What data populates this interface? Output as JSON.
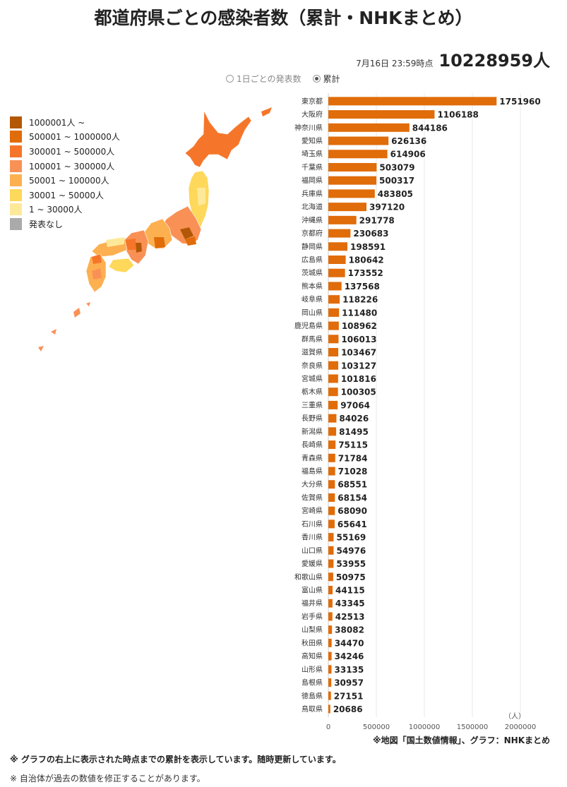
{
  "title": "都道府県ごとの感染者数（累計・NHKまとめ）",
  "asof": {
    "stamp": "7月16日 23:59時点",
    "total": "10228959人"
  },
  "toggle": {
    "daily": "1日ごとの発表数",
    "cumulative": "累計",
    "selected": "cumulative"
  },
  "legend": [
    {
      "label": "1000001人 ~",
      "color": "#b35806"
    },
    {
      "label": "500001 ~ 1000000人",
      "color": "#e06c0a"
    },
    {
      "label": "300001 ~ 500000人",
      "color": "#f5762a"
    },
    {
      "label": "100001 ~ 300000人",
      "color": "#f99156"
    },
    {
      "label": "50001 ~ 100000人",
      "color": "#fcb050"
    },
    {
      "label": "30001 ~ 50000人",
      "color": "#fed85a"
    },
    {
      "label": "1 ~ 30000人",
      "color": "#fee99a"
    },
    {
      "label": "発表なし",
      "color": "#aaaaaa"
    }
  ],
  "chart_data": {
    "type": "bar",
    "orientation": "horizontal",
    "categories": [
      "東京都",
      "大阪府",
      "神奈川県",
      "愛知県",
      "埼玉県",
      "千葉県",
      "福岡県",
      "兵庫県",
      "北海道",
      "沖縄県",
      "京都府",
      "静岡県",
      "広島県",
      "茨城県",
      "熊本県",
      "岐阜県",
      "岡山県",
      "鹿児島県",
      "群馬県",
      "滋賀県",
      "奈良県",
      "宮城県",
      "栃木県",
      "三重県",
      "長野県",
      "新潟県",
      "長崎県",
      "青森県",
      "福島県",
      "大分県",
      "佐賀県",
      "宮崎県",
      "石川県",
      "香川県",
      "山口県",
      "愛媛県",
      "和歌山県",
      "富山県",
      "福井県",
      "岩手県",
      "山梨県",
      "秋田県",
      "高知県",
      "山形県",
      "島根県",
      "徳島県",
      "鳥取県"
    ],
    "values": [
      1751960,
      1106188,
      844186,
      626136,
      614906,
      503079,
      500317,
      483805,
      397120,
      291778,
      230683,
      198591,
      180642,
      173552,
      137568,
      118226,
      111480,
      108962,
      106013,
      103467,
      103127,
      101816,
      100305,
      97064,
      84026,
      81495,
      75115,
      71784,
      71028,
      68551,
      68154,
      68090,
      65641,
      55169,
      54976,
      53955,
      50975,
      44115,
      43345,
      42513,
      38082,
      34470,
      34246,
      33135,
      30957,
      27151,
      20686
    ],
    "value_labels": [
      "1751960",
      "1106188",
      "844186",
      "626136",
      "614906",
      "503079",
      "500317",
      "483805",
      "397120",
      "291778",
      "230683",
      "198591",
      "180642",
      "173552",
      "137568",
      "118226",
      "111480",
      "108962",
      "106013",
      "103467",
      "103127",
      "101816",
      "100305",
      "97064",
      "84026",
      "81495",
      "75115",
      "71784",
      "71028",
      "68551",
      "68154",
      "68090",
      "65641",
      "55169",
      "54976",
      "53955",
      "50975",
      "44115",
      "43345",
      "42513",
      "38082",
      "34470",
      "34246",
      "33135",
      "30957",
      "27151",
      "20686"
    ],
    "xticks": [
      0,
      500000,
      1000000,
      1500000,
      2000000
    ],
    "xtick_labels": [
      "0",
      "500000",
      "1000000",
      "1500000",
      "2000000"
    ],
    "xlim": [
      0,
      2000000
    ],
    "unit": "（人）",
    "bar_color": "#e06c0a",
    "grid": true
  },
  "footnotes": {
    "source": "※地図「国土数値情報」、グラフ：NHKまとめ",
    "note1": "※ グラフの右上に表示された時点までの累計を表示しています。随時更新しています。",
    "note2": "※ 自治体が過去の数値を修正することがあります。"
  }
}
